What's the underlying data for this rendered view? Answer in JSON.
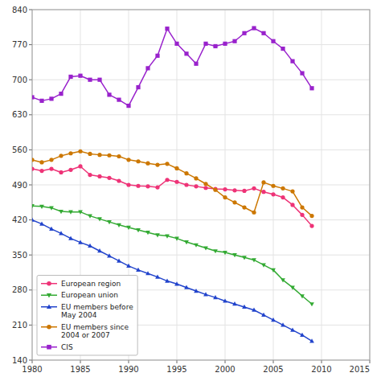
{
  "chart_data": {
    "type": "line",
    "x": [
      1980,
      1981,
      1982,
      1983,
      1984,
      1985,
      1986,
      1987,
      1988,
      1989,
      1990,
      1991,
      1992,
      1993,
      1994,
      1995,
      1996,
      1997,
      1998,
      1999,
      2000,
      2001,
      2002,
      2003,
      2004,
      2005,
      2006,
      2007,
      2008,
      2009
    ],
    "series": [
      {
        "name": "European region",
        "color": "#ee3377",
        "marker": "circle",
        "values": [
          522,
          518,
          522,
          515,
          520,
          527,
          510,
          507,
          504,
          498,
          490,
          488,
          487,
          485,
          500,
          496,
          490,
          487,
          484,
          482,
          481,
          479,
          478,
          483,
          476,
          471,
          465,
          450,
          430,
          408
        ]
      },
      {
        "name": "European union",
        "color": "#33aa33",
        "marker": "triangle-down",
        "values": [
          448,
          447,
          444,
          437,
          436,
          436,
          428,
          422,
          416,
          410,
          405,
          400,
          395,
          390,
          388,
          383,
          376,
          370,
          364,
          358,
          355,
          350,
          345,
          340,
          330,
          320,
          300,
          285,
          268,
          252
        ]
      },
      {
        "name": "EU members before\nMay 2004",
        "color": "#2244cc",
        "marker": "triangle-up",
        "values": [
          420,
          412,
          402,
          393,
          383,
          375,
          368,
          358,
          348,
          338,
          328,
          320,
          313,
          306,
          298,
          292,
          285,
          278,
          271,
          265,
          258,
          252,
          246,
          240,
          230,
          220,
          210,
          200,
          190,
          178
        ]
      },
      {
        "name": "EU members since\n2004 or 2007",
        "color": "#cc7700",
        "marker": "circle",
        "values": [
          540,
          535,
          540,
          548,
          553,
          557,
          552,
          550,
          549,
          547,
          540,
          537,
          533,
          530,
          532,
          523,
          513,
          503,
          492,
          480,
          465,
          455,
          445,
          435,
          495,
          488,
          483,
          477,
          445,
          428
        ]
      },
      {
        "name": "CIS",
        "color": "#9922cc",
        "marker": "square",
        "values": [
          665,
          658,
          662,
          672,
          706,
          708,
          700,
          700,
          670,
          660,
          648,
          685,
          723,
          748,
          802,
          772,
          752,
          732,
          772,
          767,
          772,
          777,
          793,
          803,
          793,
          777,
          762,
          737,
          713,
          683
        ]
      }
    ],
    "xlim": [
      1980,
      2015
    ],
    "ylim": [
      140,
      840
    ],
    "xticks": [
      1980,
      1985,
      1990,
      1995,
      2000,
      2005,
      2010,
      2015
    ],
    "yticks": [
      140,
      210,
      280,
      350,
      420,
      490,
      560,
      630,
      700,
      770,
      840
    ],
    "grid": true,
    "legend": "lower left"
  }
}
